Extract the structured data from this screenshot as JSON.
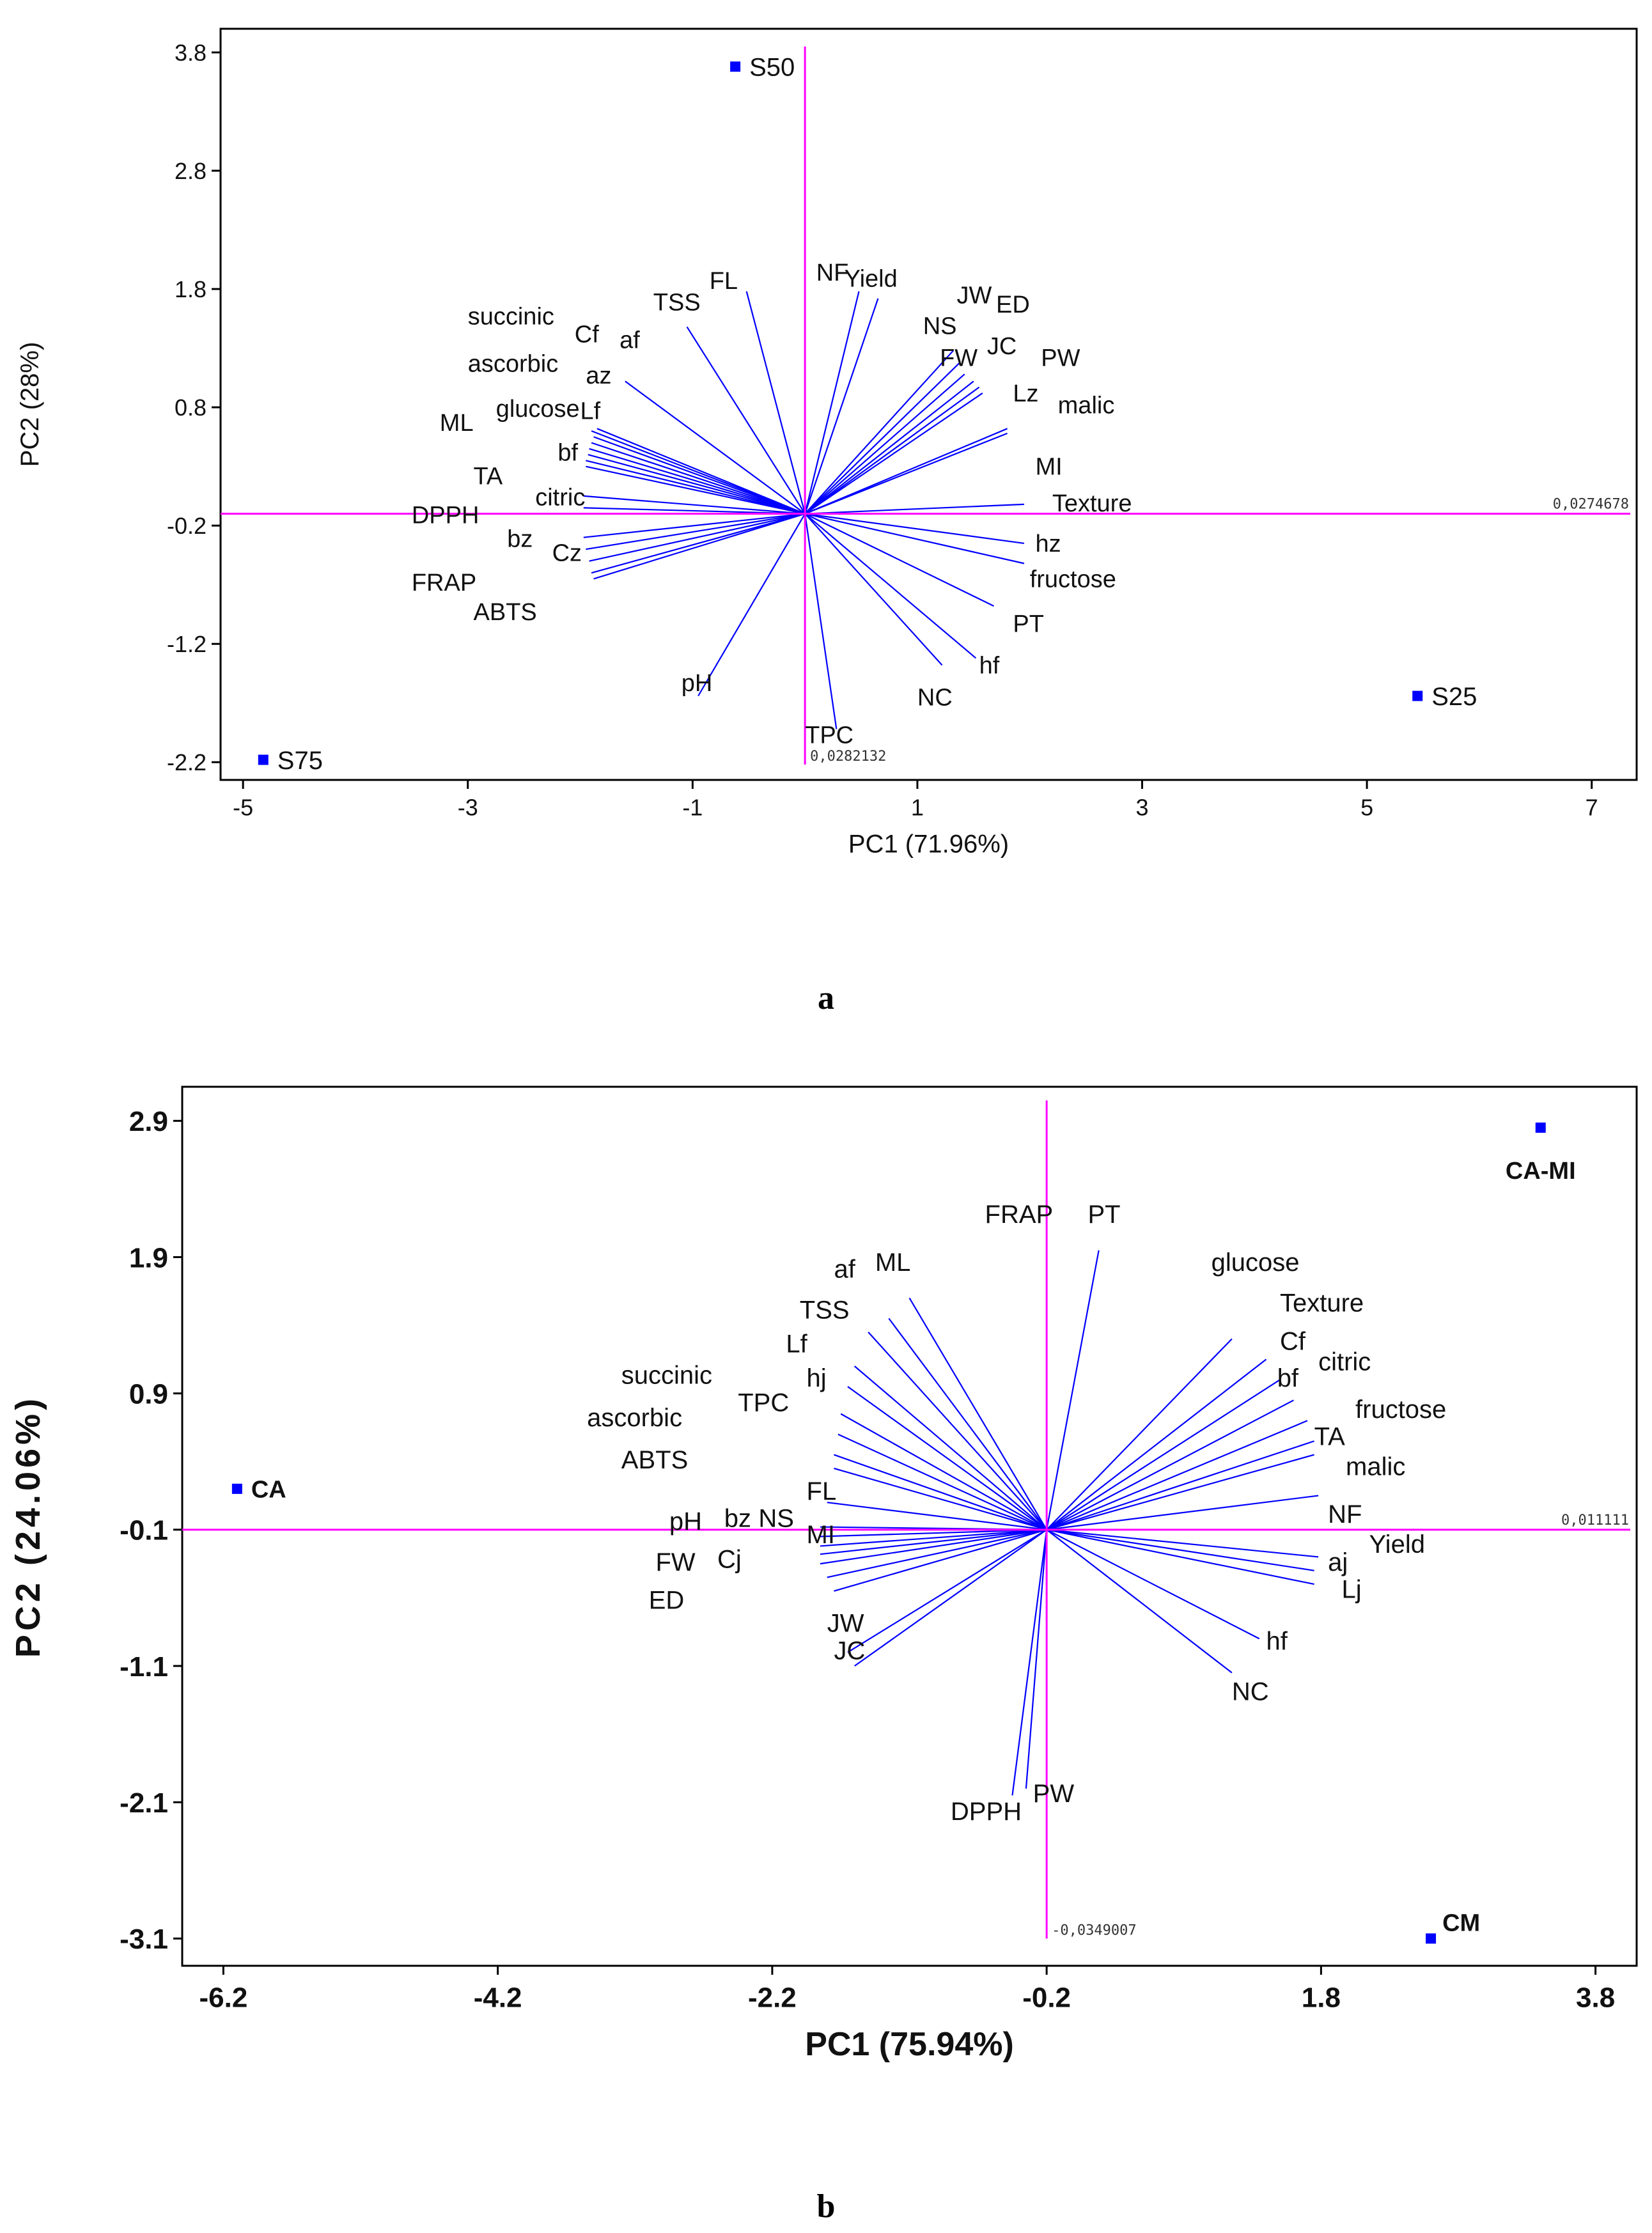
{
  "colors": {
    "axis": "#ff00ff",
    "vector": "#0000ff",
    "point": "#0000ff",
    "frame": "#000000",
    "text": "#111111"
  },
  "chart_data": [
    {
      "type": "scatter",
      "subtype": "biplot",
      "panel_label": "a",
      "xlabel": "PC1 (71.96%)",
      "ylabel": "PC2 (28%)",
      "xlim": [
        -5.2,
        7.4
      ],
      "ylim": [
        -2.35,
        4.0
      ],
      "xticks": [
        -5,
        -3,
        -1,
        1,
        3,
        5,
        7
      ],
      "xtick_labels": [
        "-5",
        "-3",
        "-1",
        "1",
        "3",
        "5",
        "7"
      ],
      "yticks": [
        3.8,
        2.8,
        1.8,
        0.8,
        -0.2,
        -1.2,
        -2.2
      ],
      "ytick_labels": [
        "3.8",
        "2.8",
        "1.8",
        "0.8",
        "-0.2",
        "-1.2",
        "-2.2"
      ],
      "grid": false,
      "axis_scale_labels": {
        "x": "0,0274678",
        "y": "0,0282132"
      },
      "origin": [
        0.0,
        -0.1
      ],
      "points": [
        {
          "label": "S50",
          "x": -0.62,
          "y": 3.68
        },
        {
          "label": "S75",
          "x": -4.82,
          "y": -2.18
        },
        {
          "label": "S25",
          "x": 5.45,
          "y": -1.64
        }
      ],
      "vectors": [
        {
          "label": "TSS",
          "x": -1.05,
          "y": 1.48
        },
        {
          "label": "FL",
          "x": -0.52,
          "y": 1.78
        },
        {
          "label": "NF",
          "x": 0.48,
          "y": 1.78
        },
        {
          "label": "Yield",
          "x": 0.65,
          "y": 1.72
        },
        {
          "label": "NS",
          "x": 1.32,
          "y": 1.28
        },
        {
          "label": "JW",
          "x": 1.38,
          "y": 1.18
        },
        {
          "label": "ED",
          "x": 1.42,
          "y": 1.08
        },
        {
          "label": "FW",
          "x": 1.5,
          "y": 1.02
        },
        {
          "label": "JC",
          "x": 1.55,
          "y": 0.97
        },
        {
          "label": "PW",
          "x": 1.58,
          "y": 0.92
        },
        {
          "label": "Lz",
          "x": 1.8,
          "y": 0.62
        },
        {
          "label": "malic",
          "x": 1.8,
          "y": 0.58
        },
        {
          "label": "MI",
          "x": 1.95,
          "y": -0.02
        },
        {
          "label": "Texture",
          "x": 1.95,
          "y": -0.1
        },
        {
          "label": "hz",
          "x": 1.95,
          "y": -0.35
        },
        {
          "label": "fructose",
          "x": 1.95,
          "y": -0.52
        },
        {
          "label": "PT",
          "x": 1.68,
          "y": -0.88
        },
        {
          "label": "hf",
          "x": 1.52,
          "y": -1.32
        },
        {
          "label": "NC",
          "x": 1.22,
          "y": -1.38
        },
        {
          "label": "TPC",
          "x": 0.28,
          "y": -1.92
        },
        {
          "label": "pH",
          "x": -0.95,
          "y": -1.64
        },
        {
          "label": "Cf",
          "x": -1.6,
          "y": 1.02
        },
        {
          "label": "af",
          "x": -1.85,
          "y": 0.62
        },
        {
          "label": "succinic",
          "x": -1.9,
          "y": 0.6
        },
        {
          "label": "az",
          "x": -1.88,
          "y": 0.55
        },
        {
          "label": "ascorbic",
          "x": -1.9,
          "y": 0.5
        },
        {
          "label": "Lf",
          "x": -1.92,
          "y": 0.45
        },
        {
          "label": "glucose",
          "x": -1.93,
          "y": 0.4
        },
        {
          "label": "ML",
          "x": -1.95,
          "y": 0.35
        },
        {
          "label": "bf",
          "x": -1.95,
          "y": 0.3
        },
        {
          "label": "TA",
          "x": -1.97,
          "y": 0.05
        },
        {
          "label": "citric",
          "x": -1.97,
          "y": -0.05
        },
        {
          "label": "DPPH",
          "x": -1.97,
          "y": -0.3
        },
        {
          "label": "bz",
          "x": -1.95,
          "y": -0.4
        },
        {
          "label": "Cz",
          "x": -1.92,
          "y": -0.5
        },
        {
          "label": "FRAP",
          "x": -1.9,
          "y": -0.6
        },
        {
          "label": "ABTS",
          "x": -1.88,
          "y": -0.65
        }
      ],
      "labels": [
        {
          "text": "TSS",
          "x": -1.35,
          "y": 1.62
        },
        {
          "text": "FL",
          "x": -0.85,
          "y": 1.8
        },
        {
          "text": "NF",
          "x": 0.1,
          "y": 1.87
        },
        {
          "text": "Yield",
          "x": 0.35,
          "y": 1.82
        },
        {
          "text": "JW",
          "x": 1.35,
          "y": 1.68
        },
        {
          "text": "ED",
          "x": 1.7,
          "y": 1.6
        },
        {
          "text": "NS",
          "x": 1.05,
          "y": 1.42
        },
        {
          "text": "JC",
          "x": 1.62,
          "y": 1.25
        },
        {
          "text": "FW",
          "x": 1.2,
          "y": 1.15
        },
        {
          "text": "PW",
          "x": 2.1,
          "y": 1.15
        },
        {
          "text": "Lz",
          "x": 1.85,
          "y": 0.85
        },
        {
          "text": "malic",
          "x": 2.25,
          "y": 0.75
        },
        {
          "text": "MI",
          "x": 2.05,
          "y": 0.23
        },
        {
          "text": "Texture",
          "x": 2.2,
          "y": -0.08
        },
        {
          "text": "hz",
          "x": 2.05,
          "y": -0.42
        },
        {
          "text": "fructose",
          "x": 2.0,
          "y": -0.72
        },
        {
          "text": "PT",
          "x": 1.85,
          "y": -1.1
        },
        {
          "text": "hf",
          "x": 1.55,
          "y": -1.45
        },
        {
          "text": "NC",
          "x": 1.0,
          "y": -1.72
        },
        {
          "text": "TPC",
          "x": 0.0,
          "y": -2.04
        },
        {
          "text": "pH",
          "x": -1.1,
          "y": -1.6
        },
        {
          "text": "succinic",
          "x": -3.0,
          "y": 1.5
        },
        {
          "text": "Cf",
          "x": -2.05,
          "y": 1.35
        },
        {
          "text": "af",
          "x": -1.65,
          "y": 1.3
        },
        {
          "text": "ascorbic",
          "x": -3.0,
          "y": 1.1
        },
        {
          "text": "az",
          "x": -1.95,
          "y": 1.0
        },
        {
          "text": "glucose",
          "x": -2.75,
          "y": 0.72
        },
        {
          "text": "Lf",
          "x": -2.0,
          "y": 0.7
        },
        {
          "text": "ML",
          "x": -3.25,
          "y": 0.6
        },
        {
          "text": "bf",
          "x": -2.2,
          "y": 0.35
        },
        {
          "text": "TA",
          "x": -2.95,
          "y": 0.15
        },
        {
          "text": "citric",
          "x": -2.4,
          "y": -0.03
        },
        {
          "text": "DPPH",
          "x": -3.5,
          "y": -0.18
        },
        {
          "text": "bz",
          "x": -2.65,
          "y": -0.38
        },
        {
          "text": "Cz",
          "x": -2.25,
          "y": -0.5
        },
        {
          "text": "FRAP",
          "x": -3.5,
          "y": -0.75
        },
        {
          "text": "ABTS",
          "x": -2.95,
          "y": -1.0
        }
      ]
    },
    {
      "type": "scatter",
      "subtype": "biplot",
      "panel_label": "b",
      "xlabel": "PC1 (75.94%)",
      "ylabel": "PC2 (24.06%)",
      "xlim": [
        -6.5,
        4.1
      ],
      "ylim": [
        -3.3,
        3.15
      ],
      "xticks": [
        -6.2,
        -4.2,
        -2.2,
        -0.2,
        1.8,
        3.8
      ],
      "xtick_labels": [
        "-6.2",
        "-4.2",
        "-2.2",
        "-0.2",
        "1.8",
        "3.8"
      ],
      "yticks": [
        2.9,
        1.9,
        0.9,
        -0.1,
        -1.1,
        -2.1,
        -3.1
      ],
      "ytick_labels": [
        "2.9",
        "1.9",
        "0.9",
        "-0.1",
        "-1.1",
        "-2.1",
        "-3.1"
      ],
      "grid": false,
      "axis_scale_labels": {
        "x": "0,011111",
        "y": "-0,0349007"
      },
      "origin": [
        -0.2,
        -0.1
      ],
      "points": [
        {
          "label": "CA",
          "x": -6.1,
          "y": 0.2
        },
        {
          "label": "CA-MI",
          "x": 3.4,
          "y": 2.85
        },
        {
          "label": "CM",
          "x": 2.6,
          "y": -3.1
        }
      ],
      "vectors": [
        {
          "label": "FRAP",
          "x": -0.2,
          "y": 1.92
        },
        {
          "label": "PT",
          "x": 0.18,
          "y": 1.95
        },
        {
          "label": "ML",
          "x": -1.2,
          "y": 1.6
        },
        {
          "label": "af",
          "x": -1.35,
          "y": 1.45
        },
        {
          "label": "TSS",
          "x": -1.5,
          "y": 1.35
        },
        {
          "label": "Lf",
          "x": -1.6,
          "y": 1.1
        },
        {
          "label": "hj",
          "x": -1.65,
          "y": 0.95
        },
        {
          "label": "succinic",
          "x": -1.7,
          "y": 0.75
        },
        {
          "label": "TPC",
          "x": -1.72,
          "y": 0.6
        },
        {
          "label": "ascorbic",
          "x": -1.75,
          "y": 0.45
        },
        {
          "label": "ABTS",
          "x": -1.75,
          "y": 0.35
        },
        {
          "label": "FL",
          "x": -1.8,
          "y": 0.1
        },
        {
          "label": "pH",
          "x": -1.85,
          "y": -0.08
        },
        {
          "label": "bz",
          "x": -1.85,
          "y": -0.15
        },
        {
          "label": "NS",
          "x": -1.85,
          "y": -0.22
        },
        {
          "label": "MI",
          "x": -1.85,
          "y": -0.28
        },
        {
          "label": "Cj",
          "x": -1.85,
          "y": -0.35
        },
        {
          "label": "FW",
          "x": -1.8,
          "y": -0.45
        },
        {
          "label": "ED",
          "x": -1.75,
          "y": -0.55
        },
        {
          "label": "JW",
          "x": -1.65,
          "y": -1.0
        },
        {
          "label": "JC",
          "x": -1.6,
          "y": -1.1
        },
        {
          "label": "DPPH",
          "x": -0.45,
          "y": -2.05
        },
        {
          "label": "PW",
          "x": -0.35,
          "y": -2.0
        },
        {
          "label": "glucose",
          "x": 1.15,
          "y": 1.3
        },
        {
          "label": "Texture",
          "x": 1.4,
          "y": 1.15
        },
        {
          "label": "Cf",
          "x": 1.5,
          "y": 1.0
        },
        {
          "label": "bf",
          "x": 1.6,
          "y": 0.85
        },
        {
          "label": "citric",
          "x": 1.7,
          "y": 0.7
        },
        {
          "label": "fructose",
          "x": 1.75,
          "y": 0.55
        },
        {
          "label": "TA",
          "x": 1.75,
          "y": 0.45
        },
        {
          "label": "malic",
          "x": 1.78,
          "y": 0.15
        },
        {
          "label": "NF",
          "x": 1.78,
          "y": -0.1
        },
        {
          "label": "Yield",
          "x": 1.78,
          "y": -0.3
        },
        {
          "label": "aj",
          "x": 1.75,
          "y": -0.4
        },
        {
          "label": "Lj",
          "x": 1.75,
          "y": -0.5
        },
        {
          "label": "hf",
          "x": 1.35,
          "y": -0.9
        },
        {
          "label": "NC",
          "x": 1.15,
          "y": -1.15
        }
      ],
      "labels": [
        {
          "text": "FRAP",
          "x": -0.65,
          "y": 2.15
        },
        {
          "text": "PT",
          "x": 0.1,
          "y": 2.15
        },
        {
          "text": "ML",
          "x": -1.45,
          "y": 1.8
        },
        {
          "text": "af",
          "x": -1.75,
          "y": 1.75
        },
        {
          "text": "glucose",
          "x": 1.0,
          "y": 1.8
        },
        {
          "text": "TSS",
          "x": -2.0,
          "y": 1.45
        },
        {
          "text": "Texture",
          "x": 1.5,
          "y": 1.5
        },
        {
          "text": "Lf",
          "x": -2.1,
          "y": 1.2
        },
        {
          "text": "Cf",
          "x": 1.5,
          "y": 1.22
        },
        {
          "text": "succinic",
          "x": -3.3,
          "y": 0.97
        },
        {
          "text": "hj",
          "x": -1.95,
          "y": 0.95
        },
        {
          "text": "citric",
          "x": 1.78,
          "y": 1.07
        },
        {
          "text": "bf",
          "x": 1.48,
          "y": 0.95
        },
        {
          "text": "TPC",
          "x": -2.45,
          "y": 0.77
        },
        {
          "text": "ascorbic",
          "x": -3.55,
          "y": 0.66
        },
        {
          "text": "fructose",
          "x": 2.05,
          "y": 0.72
        },
        {
          "text": "TA",
          "x": 1.75,
          "y": 0.52
        },
        {
          "text": "ABTS",
          "x": -3.3,
          "y": 0.35
        },
        {
          "text": "malic",
          "x": 1.98,
          "y": 0.3
        },
        {
          "text": "FL",
          "x": -1.95,
          "y": 0.12
        },
        {
          "text": "pH",
          "x": -2.95,
          "y": -0.1
        },
        {
          "text": "bz",
          "x": -2.55,
          "y": -0.08
        },
        {
          "text": "NS",
          "x": -2.3,
          "y": -0.08
        },
        {
          "text": "MI",
          "x": -1.95,
          "y": -0.2
        },
        {
          "text": "NF",
          "x": 1.85,
          "y": -0.05
        },
        {
          "text": "Yield",
          "x": 2.15,
          "y": -0.27
        },
        {
          "text": "Cj",
          "x": -2.6,
          "y": -0.38
        },
        {
          "text": "FW",
          "x": -3.05,
          "y": -0.4
        },
        {
          "text": "aj",
          "x": 1.85,
          "y": -0.4
        },
        {
          "text": "Lj",
          "x": 1.95,
          "y": -0.6
        },
        {
          "text": "ED",
          "x": -3.1,
          "y": -0.68
        },
        {
          "text": "JW",
          "x": -1.8,
          "y": -0.85
        },
        {
          "text": "JC",
          "x": -1.75,
          "y": -1.05
        },
        {
          "text": "hf",
          "x": 1.4,
          "y": -0.98
        },
        {
          "text": "NC",
          "x": 1.15,
          "y": -1.35
        },
        {
          "text": "DPPH",
          "x": -0.9,
          "y": -2.23
        },
        {
          "text": "PW",
          "x": -0.3,
          "y": -2.1
        }
      ]
    }
  ]
}
